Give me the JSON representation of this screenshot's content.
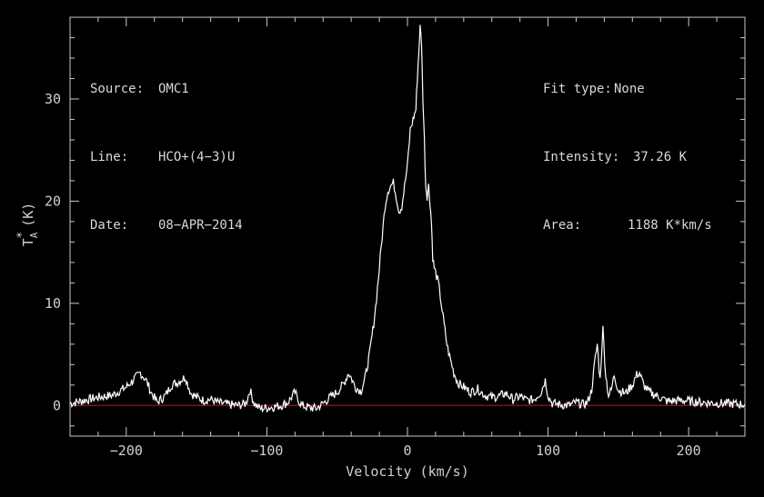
{
  "info_left": {
    "source_label": "Source:",
    "source_value": "OMC1",
    "line_label": "Line:",
    "line_value": "HCO+(4−3)U",
    "date_label": "Date:",
    "date_value": "08−APR−2014"
  },
  "info_right": {
    "fit_label": "Fit type:",
    "fit_value": "None",
    "intensity_label": "Intensity:",
    "intensity_value": "37.26 K",
    "area_label": "Area:",
    "area_value": "1188 K*km/s"
  },
  "chart_data": {
    "type": "line",
    "title": "",
    "xlabel": "Velocity (km/s)",
    "ylabel_main": "T",
    "ylabel_sup": "*",
    "ylabel_sub": "A",
    "ylabel_unit": "(K)",
    "xlim": [
      -240,
      240
    ],
    "ylim": [
      -3,
      38
    ],
    "xticks_major": [
      -200,
      -100,
      0,
      100,
      200
    ],
    "xtick_labels": [
      "−200",
      "−100",
      "0",
      "100",
      "200"
    ],
    "yticks_major": [
      0,
      10,
      20,
      30
    ],
    "ytick_labels": [
      "0",
      "10",
      "20",
      "30"
    ],
    "grid": false,
    "baseline": 0,
    "colors": {
      "spectrum": "#ffffff",
      "baseline": "#cc0000",
      "axes": "#c8c8c8",
      "background": "#000000"
    },
    "series": [
      {
        "x": [
          -240,
          -230,
          -220,
          -210,
          -200,
          -195,
          -190,
          -186,
          -182,
          -178,
          -172,
          -168,
          -163,
          -158,
          -154,
          -150,
          -145,
          -140,
          -135,
          -128,
          -120,
          -115,
          -112,
          -109,
          -105,
          -98,
          -90,
          -85,
          -80,
          -78,
          -75,
          -70,
          -65,
          -60,
          -55,
          -50,
          -45,
          -42,
          -40,
          -37,
          -33,
          -30,
          -27,
          -24,
          -22,
          -20,
          -18,
          -16,
          -14,
          -12,
          -10,
          -8,
          -6,
          -4,
          -2,
          0,
          2,
          4,
          5,
          6,
          7,
          8,
          9,
          10,
          11,
          12,
          13,
          14,
          15,
          16,
          17,
          18,
          19,
          20,
          22,
          24,
          26,
          28,
          30,
          33,
          36,
          40,
          45,
          50,
          55,
          60,
          65,
          70,
          75,
          80,
          85,
          90,
          95,
          98,
          100,
          103,
          108,
          115,
          120,
          125,
          128,
          131,
          133,
          135,
          137,
          139,
          141,
          143,
          145,
          147,
          150,
          155,
          160,
          163,
          165,
          168,
          172,
          178,
          185,
          195,
          210,
          225,
          240
        ],
        "y": [
          0.2,
          0.5,
          0.8,
          1.0,
          1.8,
          2.5,
          3.2,
          2.5,
          1.2,
          0.3,
          1.0,
          2.0,
          2.3,
          2.8,
          1.2,
          0.8,
          0.5,
          0.6,
          0.3,
          0.1,
          0,
          0.2,
          1.5,
          0.2,
          -0.3,
          -0.2,
          0,
          0.3,
          1.3,
          0.6,
          0,
          -0.2,
          -0.3,
          0.2,
          0.8,
          1.3,
          2.2,
          3.2,
          2.7,
          1.8,
          1.4,
          2.8,
          5.0,
          8.0,
          10.5,
          13.5,
          16.5,
          19.5,
          21.0,
          21.5,
          21.8,
          20.5,
          19.0,
          19.5,
          21.5,
          23.5,
          27.0,
          28.0,
          28.5,
          29.0,
          32.0,
          34.5,
          37.0,
          35.5,
          30.0,
          26.0,
          21.5,
          20.5,
          21.5,
          20.0,
          18.0,
          14.5,
          13.5,
          13.0,
          12.0,
          10.0,
          8.0,
          6.0,
          4.8,
          3.2,
          2.2,
          1.8,
          1.3,
          1.6,
          1.0,
          0.8,
          0.9,
          1.2,
          0.6,
          0.9,
          0.5,
          0.6,
          1.3,
          2.5,
          1.0,
          0.2,
          0.1,
          0,
          0.3,
          0.1,
          0.3,
          1.5,
          4.0,
          6.0,
          2.5,
          7.5,
          3.0,
          1.0,
          1.5,
          3.0,
          1.5,
          1.2,
          2.0,
          3.0,
          3.2,
          2.0,
          1.3,
          0.9,
          0.4,
          0.5,
          0.3,
          0.2,
          0.1
        ]
      }
    ]
  }
}
